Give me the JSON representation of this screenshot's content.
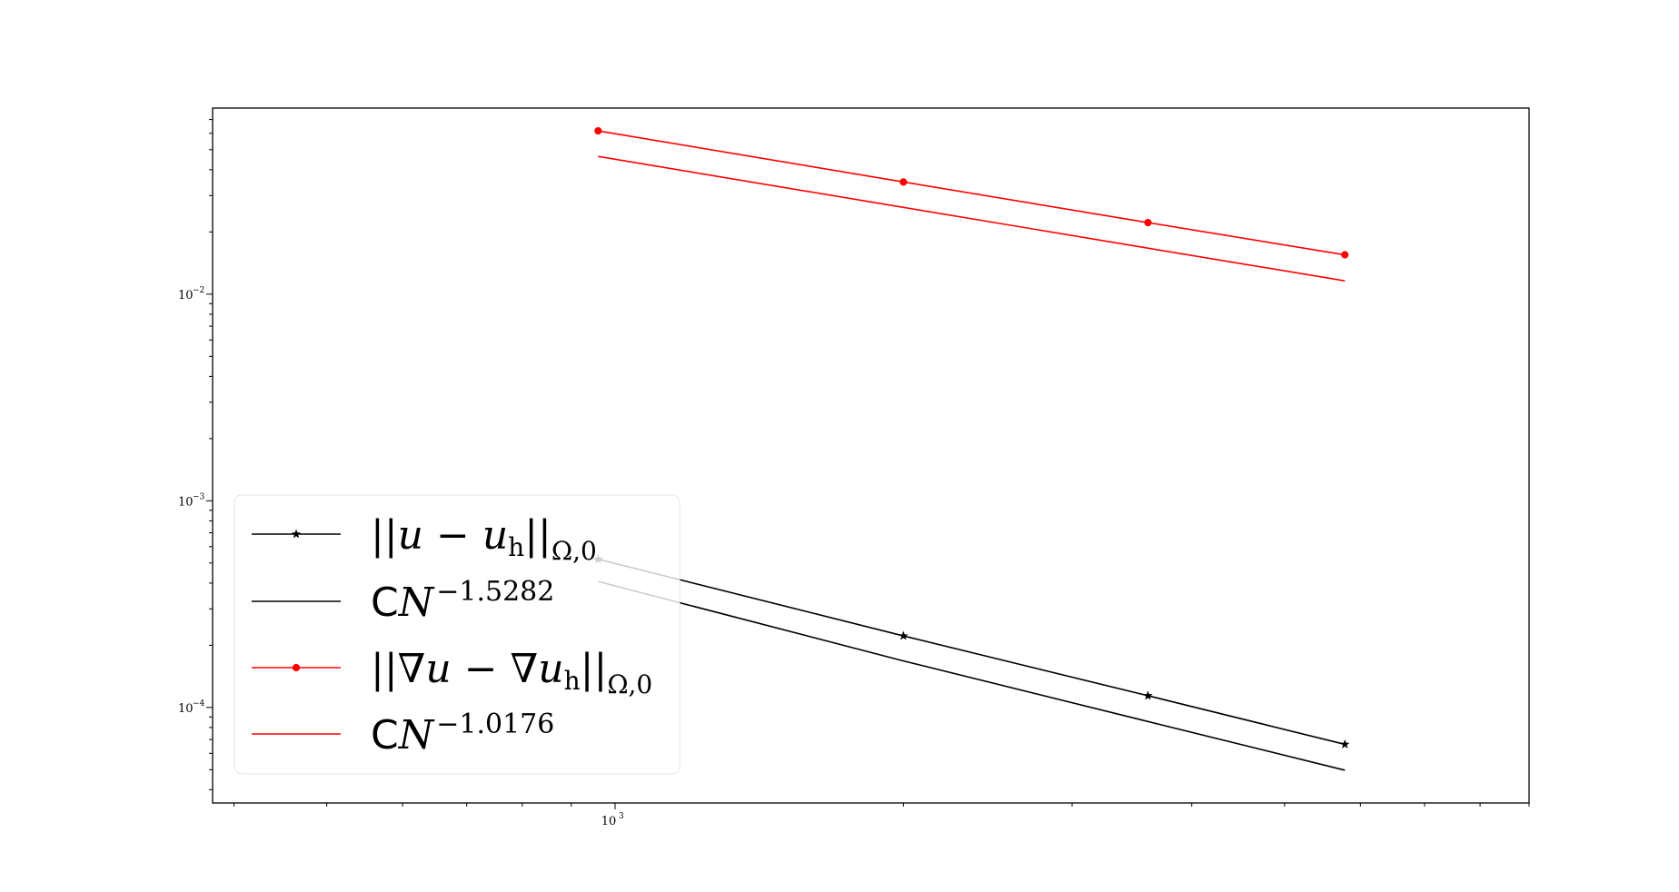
{
  "chart_data": {
    "type": "line",
    "xscale": "log",
    "yscale": "log",
    "xlim": [
      380,
      9000
    ],
    "ylim": [
      3.45e-05,
      0.0795
    ],
    "grid": false,
    "legend_position": "lower-left",
    "x_major_ticks": [
      {
        "value": 1000,
        "base": "10",
        "exp": "3"
      }
    ],
    "y_major_ticks": [
      {
        "value": 0.01,
        "base": "10",
        "exp": "−2"
      },
      {
        "value": 0.001,
        "base": "10",
        "exp": "−3"
      },
      {
        "value": 0.0001,
        "base": "10",
        "exp": "−4"
      }
    ],
    "x": [
      960,
      2000,
      3600,
      5780
    ],
    "series": [
      {
        "name": "||u − u_h||_{Ω,0}",
        "legend_main": "||u − u",
        "legend_sub_h": "h",
        "legend_tail": "||",
        "legend_sub": "Ω,0",
        "color": "#000000",
        "marker": "star",
        "values": [
          0.000522,
          0.000222,
          0.000114,
          6.63e-05
        ]
      },
      {
        "name": "CN^{−1.5282}",
        "legend_c": "C",
        "legend_main": "N",
        "legend_sup": "−1.5282",
        "color": "#000000",
        "marker": "none",
        "values": [
          0.000407,
          0.000168,
          8.55e-05,
          4.97e-05
        ]
      },
      {
        "name": "||∇u − ∇u_h||_{Ω,0}",
        "legend_main": "||∇u − ∇u",
        "legend_sub_h": "h",
        "legend_tail": "||",
        "legend_sub": "Ω,0",
        "color": "#ff0000",
        "marker": "circle",
        "values": [
          0.0617,
          0.0349,
          0.0222,
          0.0155
        ]
      },
      {
        "name": "CN^{−1.0176}",
        "legend_c": "C",
        "legend_main": "N",
        "legend_sup": "−1.0176",
        "color": "#ff0000",
        "marker": "none",
        "values": [
          0.0464,
          0.0263,
          0.0167,
          0.0116
        ]
      }
    ]
  }
}
